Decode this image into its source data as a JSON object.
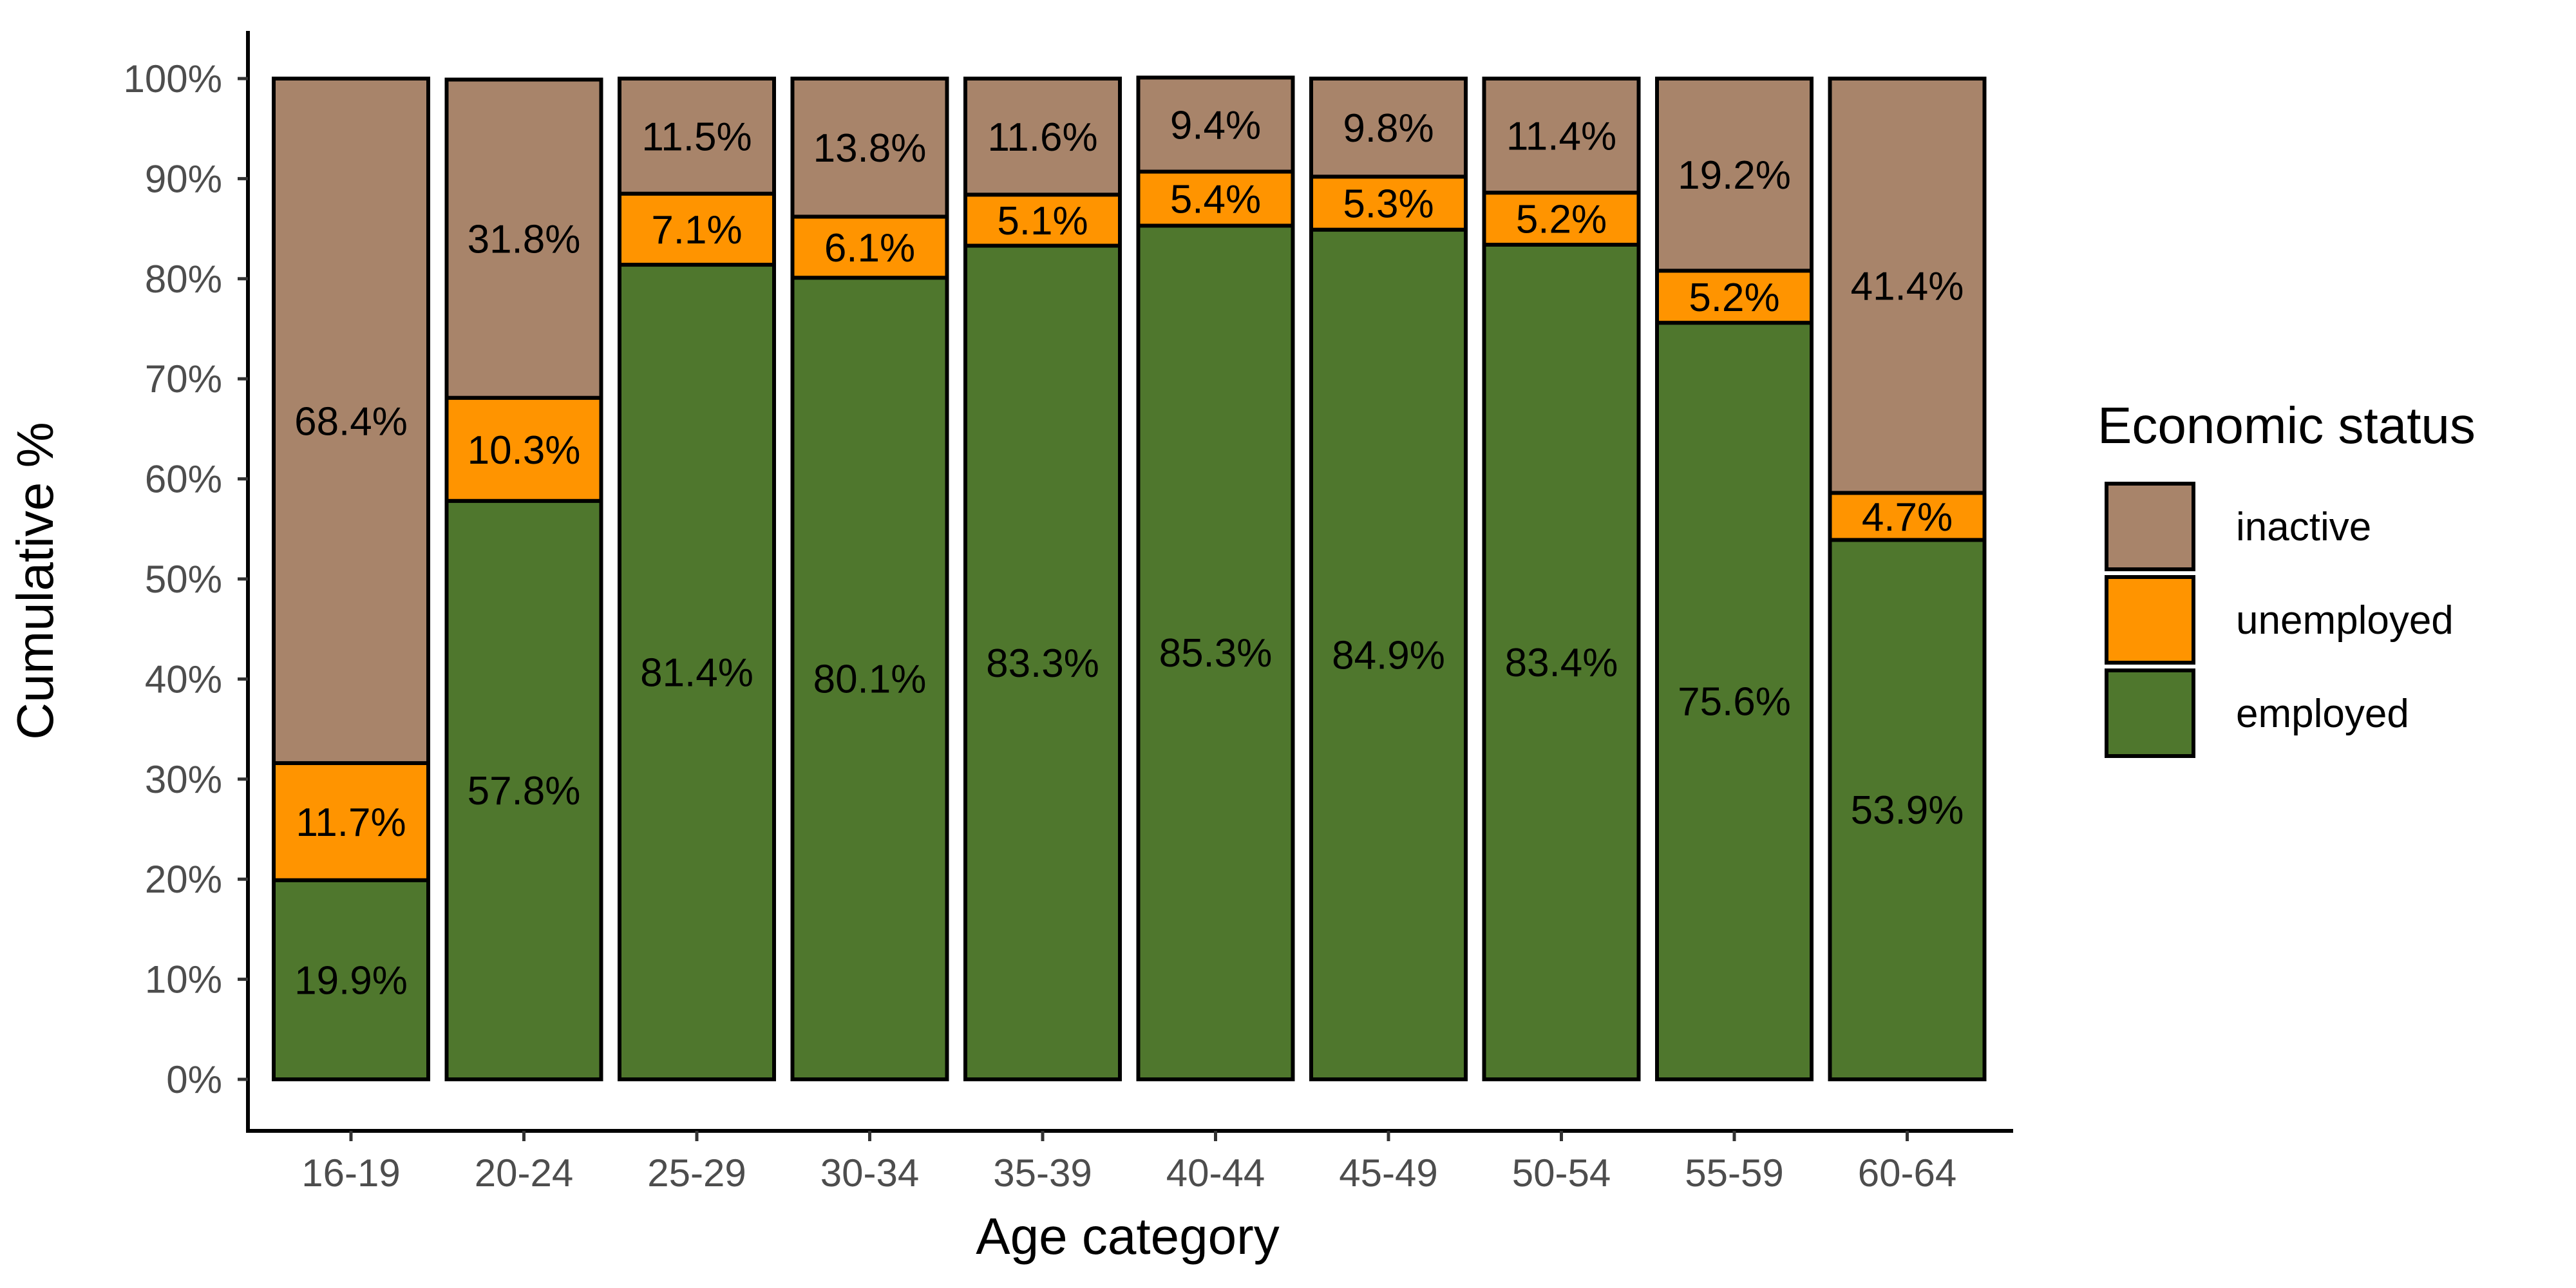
{
  "chart_data": {
    "type": "bar",
    "stacked": true,
    "xlabel": "Age category",
    "ylabel": "Cumulative %",
    "ylim": [
      0,
      100
    ],
    "y_ticks": [
      "0%",
      "10%",
      "20%",
      "30%",
      "40%",
      "50%",
      "60%",
      "70%",
      "80%",
      "90%",
      "100%"
    ],
    "categories": [
      "16-19",
      "20-24",
      "25-29",
      "30-34",
      "35-39",
      "40-44",
      "45-49",
      "50-54",
      "55-59",
      "60-64"
    ],
    "series": [
      {
        "name": "employed",
        "color": "#4f772d",
        "values": [
          19.9,
          57.8,
          81.4,
          80.1,
          83.3,
          85.3,
          84.9,
          83.4,
          75.6,
          53.9
        ],
        "labels": [
          "19.9%",
          "57.8%",
          "81.4%",
          "80.1%",
          "83.3%",
          "85.3%",
          "84.9%",
          "83.4%",
          "75.6%",
          "53.9%"
        ]
      },
      {
        "name": "unemployed",
        "color": "#ff9400",
        "values": [
          11.7,
          10.3,
          7.1,
          6.1,
          5.1,
          5.4,
          5.3,
          5.2,
          5.2,
          4.7
        ],
        "labels": [
          "11.7%",
          "10.3%",
          "7.1%",
          "6.1%",
          "5.1%",
          "5.4%",
          "5.3%",
          "5.2%",
          "5.2%",
          "4.7%"
        ]
      },
      {
        "name": "inactive",
        "color": "#a8846a",
        "values": [
          68.4,
          31.8,
          11.5,
          13.8,
          11.6,
          9.4,
          9.8,
          11.4,
          19.2,
          41.4
        ],
        "labels": [
          "68.4%",
          "31.8%",
          "11.5%",
          "13.8%",
          "11.6%",
          "9.4%",
          "9.8%",
          "11.4%",
          "19.2%",
          "41.4%"
        ]
      }
    ],
    "legend": {
      "title": "Economic status",
      "placement": "right",
      "order": [
        "inactive",
        "unemployed",
        "employed"
      ]
    },
    "grid": false
  }
}
